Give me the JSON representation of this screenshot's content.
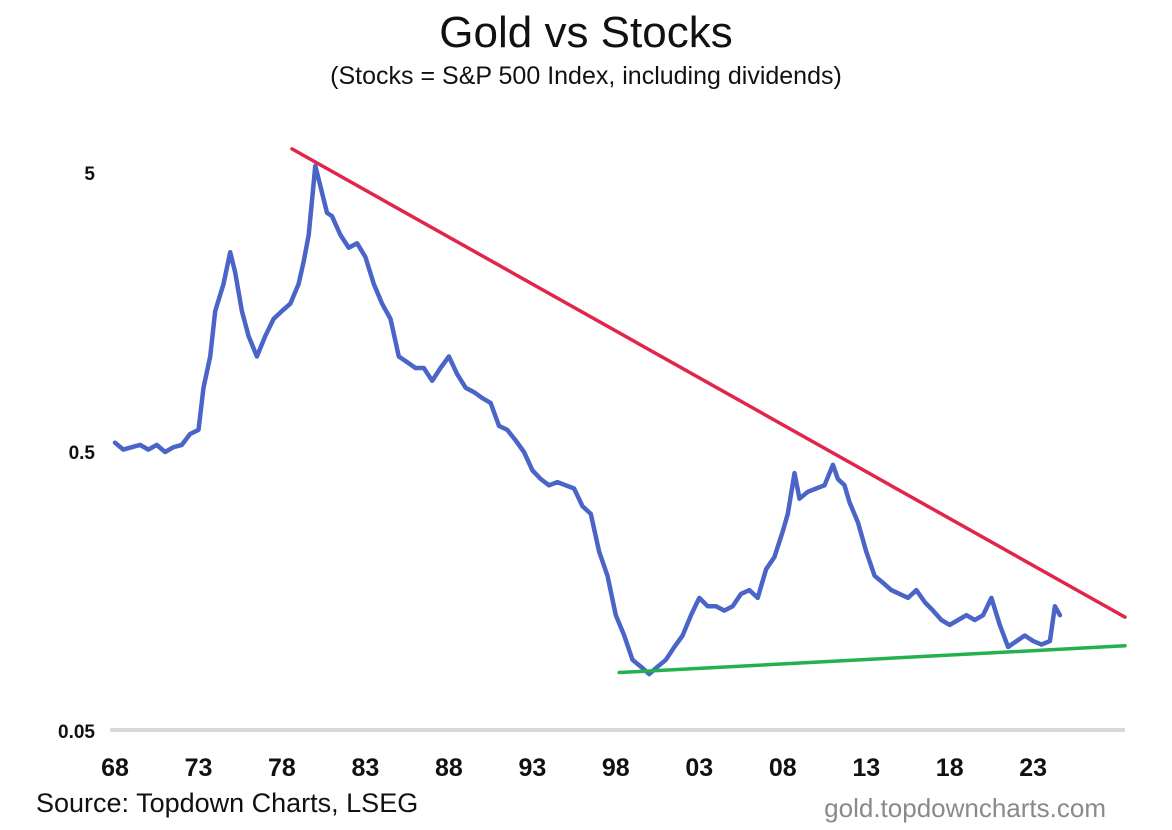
{
  "chart_data": {
    "type": "line",
    "title": "Gold vs Stocks",
    "subtitle": "(Stocks = S&P 500 Index, including dividends)",
    "xlabel": "",
    "ylabel": "",
    "y_scale": "log",
    "ylim": [
      0.05,
      7
    ],
    "xlim": [
      1968,
      2028.5
    ],
    "y_ticks": [
      "5",
      "0.5",
      "0.05"
    ],
    "y_tick_values": [
      5,
      0.5,
      0.05
    ],
    "x_ticks": [
      "68",
      "73",
      "78",
      "83",
      "88",
      "93",
      "98",
      "03",
      "08",
      "13",
      "18",
      "23"
    ],
    "x_tick_values": [
      1968,
      1973,
      1978,
      1983,
      1988,
      1993,
      1998,
      2003,
      2008,
      2013,
      2018,
      2023
    ],
    "grid": false,
    "series": [
      {
        "name": "",
        "color": "#4a64c8",
        "x": [
          1968,
          1968.5,
          1969,
          1969.5,
          1970,
          1970.5,
          1971,
          1971.5,
          1972,
          1972.5,
          1973,
          1973.3,
          1973.7,
          1974,
          1974.5,
          1974.9,
          1975.2,
          1975.6,
          1976,
          1976.5,
          1977,
          1977.5,
          1978,
          1978.5,
          1979,
          1979.3,
          1979.6,
          1980,
          1980.3,
          1980.7,
          1981,
          1981.5,
          1982,
          1982.5,
          1983,
          1983.5,
          1984,
          1984.5,
          1985,
          1985.5,
          1986,
          1986.5,
          1987,
          1987.5,
          1988,
          1988.5,
          1989,
          1989.5,
          1990,
          1990.5,
          1991,
          1991.5,
          1992,
          1992.5,
          1993,
          1993.5,
          1994,
          1994.5,
          1995,
          1995.5,
          1996,
          1996.5,
          1997,
          1997.5,
          1998,
          1998.5,
          1999,
          1999.5,
          2000,
          2000.5,
          2001,
          2001.5,
          2002,
          2002.5,
          2003,
          2003.5,
          2004,
          2004.5,
          2005,
          2005.5,
          2006,
          2006.5,
          2007,
          2007.5,
          2008,
          2008.3,
          2008.7,
          2009,
          2009.5,
          2010,
          2010.5,
          2011,
          2011.3,
          2011.7,
          2012,
          2012.5,
          2013,
          2013.5,
          2014,
          2014.5,
          2015,
          2015.5,
          2016,
          2016.5,
          2017,
          2017.5,
          2018,
          2018.5,
          2019,
          2019.5,
          2020,
          2020.5,
          2021,
          2021.5,
          2022,
          2022.5,
          2023,
          2023.5,
          2024,
          2024.3,
          2024.6
        ],
        "values": [
          0.54,
          0.51,
          0.52,
          0.53,
          0.51,
          0.53,
          0.5,
          0.52,
          0.53,
          0.58,
          0.6,
          0.85,
          1.1,
          1.6,
          2.0,
          2.6,
          2.2,
          1.6,
          1.3,
          1.1,
          1.3,
          1.5,
          1.6,
          1.7,
          2.0,
          2.4,
          3.0,
          5.3,
          4.5,
          3.6,
          3.5,
          3.0,
          2.7,
          2.8,
          2.5,
          2.0,
          1.7,
          1.5,
          1.1,
          1.05,
          1.0,
          1.0,
          0.9,
          1.0,
          1.1,
          0.95,
          0.85,
          0.82,
          0.78,
          0.75,
          0.62,
          0.6,
          0.55,
          0.5,
          0.43,
          0.4,
          0.38,
          0.39,
          0.38,
          0.37,
          0.32,
          0.3,
          0.22,
          0.18,
          0.13,
          0.11,
          0.09,
          0.085,
          0.08,
          0.085,
          0.09,
          0.1,
          0.11,
          0.13,
          0.15,
          0.14,
          0.14,
          0.135,
          0.14,
          0.155,
          0.16,
          0.15,
          0.19,
          0.21,
          0.26,
          0.3,
          0.42,
          0.34,
          0.36,
          0.37,
          0.38,
          0.45,
          0.4,
          0.38,
          0.33,
          0.28,
          0.22,
          0.18,
          0.17,
          0.16,
          0.155,
          0.15,
          0.16,
          0.145,
          0.135,
          0.125,
          0.12,
          0.125,
          0.13,
          0.125,
          0.13,
          0.15,
          0.12,
          0.1,
          0.105,
          0.11,
          0.105,
          0.102,
          0.105,
          0.14,
          0.13
        ]
      }
    ],
    "trendlines": [
      {
        "name": "",
        "color": "#e0264b",
        "x": [
          1978.6,
          2028.5
        ],
        "values": [
          6.1,
          0.128
        ]
      },
      {
        "name": "",
        "color": "#22b14c",
        "x": [
          1998.2,
          2028.5
        ],
        "values": [
          0.081,
          0.101
        ]
      }
    ],
    "axis_color": "#d9d9d9"
  },
  "source": "Source: Topdown Charts, LSEG",
  "watermark": "gold.topdowncharts.com"
}
